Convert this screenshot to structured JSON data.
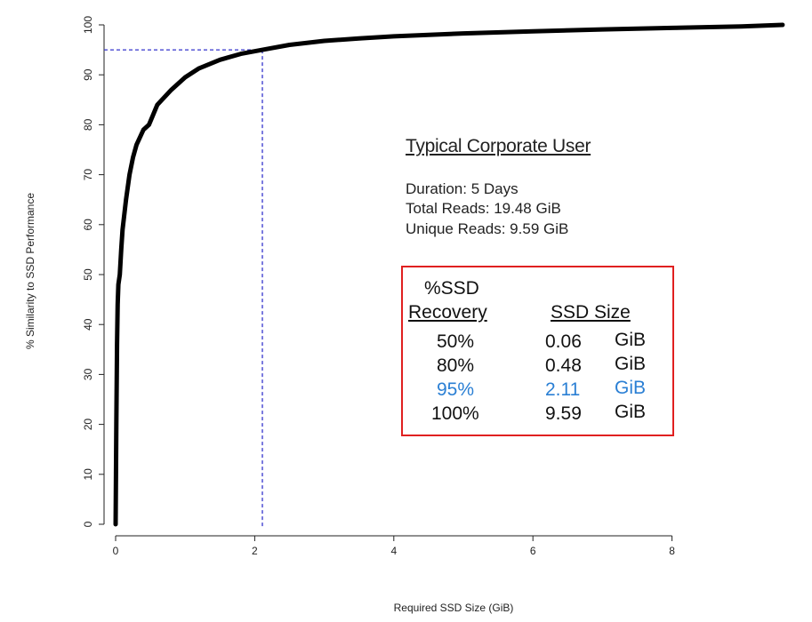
{
  "chart_data": {
    "type": "line",
    "title": "",
    "xlabel": "Required SSD Size (GiB)",
    "ylabel": "% Similarity to SSD Performance",
    "xlim": [
      0,
      9.59
    ],
    "ylim": [
      0,
      100
    ],
    "x_ticks": [
      "0",
      "2",
      "4",
      "6",
      "8"
    ],
    "y_ticks": [
      "0",
      "10",
      "20",
      "30",
      "40",
      "50",
      "60",
      "70",
      "80",
      "90",
      "100"
    ],
    "series": [
      {
        "x": [
          0,
          0.005,
          0.01,
          0.02,
          0.03,
          0.04,
          0.06,
          0.08,
          0.1,
          0.15,
          0.2,
          0.25,
          0.3,
          0.4,
          0.48,
          0.6,
          0.8,
          1.0,
          1.2,
          1.5,
          1.8,
          2.11,
          2.5,
          3.0,
          3.5,
          4.0,
          5.0,
          6.0,
          7.0,
          8.0,
          9.0,
          9.59
        ],
        "y": [
          0,
          10,
          20,
          36,
          44,
          48,
          50,
          55,
          59,
          65,
          70,
          73.5,
          76,
          79,
          80,
          84,
          87,
          89.5,
          91.3,
          93,
          94.2,
          95,
          96,
          96.8,
          97.3,
          97.7,
          98.3,
          98.7,
          99.1,
          99.4,
          99.7,
          100
        ]
      }
    ],
    "reference": {
      "x": 2.11,
      "y": 95,
      "color": "#3333cc"
    },
    "grid": false,
    "legend": "none"
  },
  "info": {
    "title": "Typical Corporate User",
    "duration": "Duration: 5 Days",
    "total_reads": "Total Reads: 19.48 GiB",
    "unique_reads": "Unique Reads: 9.59 GiB"
  },
  "table": {
    "col1_header_line1": "%SSD",
    "col1_header_line2": "Recovery",
    "col2_header": "SSD Size",
    "rows": [
      {
        "pct": "50%",
        "size": "0.06",
        "unit": "GiB"
      },
      {
        "pct": "80%",
        "size": "0.48",
        "unit": "GiB"
      },
      {
        "pct": "95%",
        "size": "2.11",
        "unit": "GiB"
      },
      {
        "pct": "100%",
        "size": "9.59",
        "unit": "GiB"
      }
    ],
    "highlight_color": "#2a7fd4",
    "border_color": "#e02020"
  }
}
